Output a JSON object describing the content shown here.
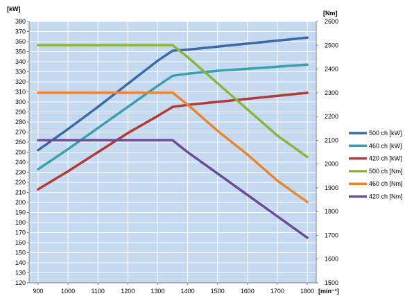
{
  "chart_data": {
    "type": "line",
    "title": "",
    "xlabel": "[min⁻¹]",
    "ylabel_left": "[kW]",
    "ylabel_right": "[Nm]",
    "x_ticks": [
      900,
      1000,
      1100,
      1200,
      1300,
      1400,
      1500,
      1600,
      1700,
      1800
    ],
    "xlim": [
      870,
      1830
    ],
    "ylim_left": [
      120,
      380
    ],
    "y_left_ticks": [
      120,
      130,
      140,
      150,
      160,
      170,
      180,
      190,
      200,
      210,
      220,
      230,
      240,
      250,
      260,
      270,
      280,
      290,
      300,
      310,
      320,
      330,
      340,
      350,
      360,
      370,
      380
    ],
    "ylim_right": [
      1500,
      2600
    ],
    "y_right_ticks": [
      1500,
      1600,
      1700,
      1800,
      1900,
      2000,
      2100,
      2200,
      2300,
      2400,
      2500,
      2600
    ],
    "grid": true,
    "legend_position": "right",
    "series": [
      {
        "name": "500 ch [kW]",
        "axis": "left",
        "color": "#3c6aa8",
        "x": [
          900,
          1000,
          1100,
          1200,
          1300,
          1350,
          1400,
          1500,
          1600,
          1700,
          1800
        ],
        "y": [
          252,
          273,
          295,
          318,
          341,
          351,
          352,
          355,
          358,
          361,
          364
        ]
      },
      {
        "name": "460 ch [kW]",
        "axis": "left",
        "color": "#3aa0ae",
        "x": [
          900,
          1000,
          1100,
          1200,
          1300,
          1350,
          1400,
          1500,
          1600,
          1700,
          1800
        ],
        "y": [
          233,
          253,
          274,
          295,
          316,
          326,
          328,
          331,
          333,
          335,
          337
        ]
      },
      {
        "name": "420 ch [kW]",
        "axis": "left",
        "color": "#b43a3a",
        "x": [
          900,
          1000,
          1100,
          1200,
          1300,
          1350,
          1400,
          1500,
          1600,
          1700,
          1800
        ],
        "y": [
          213,
          231,
          250,
          269,
          286,
          295,
          297,
          300,
          303,
          306,
          309
        ]
      },
      {
        "name": "500 ch [Nm]",
        "axis": "right",
        "color": "#8bb43c",
        "x": [
          900,
          1000,
          1100,
          1200,
          1300,
          1350,
          1400,
          1500,
          1600,
          1700,
          1800
        ],
        "y": [
          2500,
          2500,
          2500,
          2500,
          2500,
          2500,
          2450,
          2340,
          2230,
          2120,
          2030
        ]
      },
      {
        "name": "460 ch [Nm]",
        "axis": "right",
        "color": "#e8852f",
        "x": [
          900,
          1000,
          1100,
          1200,
          1300,
          1350,
          1400,
          1500,
          1600,
          1700,
          1800
        ],
        "y": [
          2300,
          2300,
          2300,
          2300,
          2300,
          2300,
          2250,
          2140,
          2040,
          1930,
          1840
        ]
      },
      {
        "name": "420 ch [Nm]",
        "axis": "right",
        "color": "#6d4a94",
        "x": [
          900,
          1000,
          1100,
          1200,
          1300,
          1350,
          1400,
          1500,
          1600,
          1700,
          1800
        ],
        "y": [
          2100,
          2100,
          2100,
          2100,
          2100,
          2100,
          2050,
          1960,
          1870,
          1780,
          1690
        ]
      }
    ]
  }
}
